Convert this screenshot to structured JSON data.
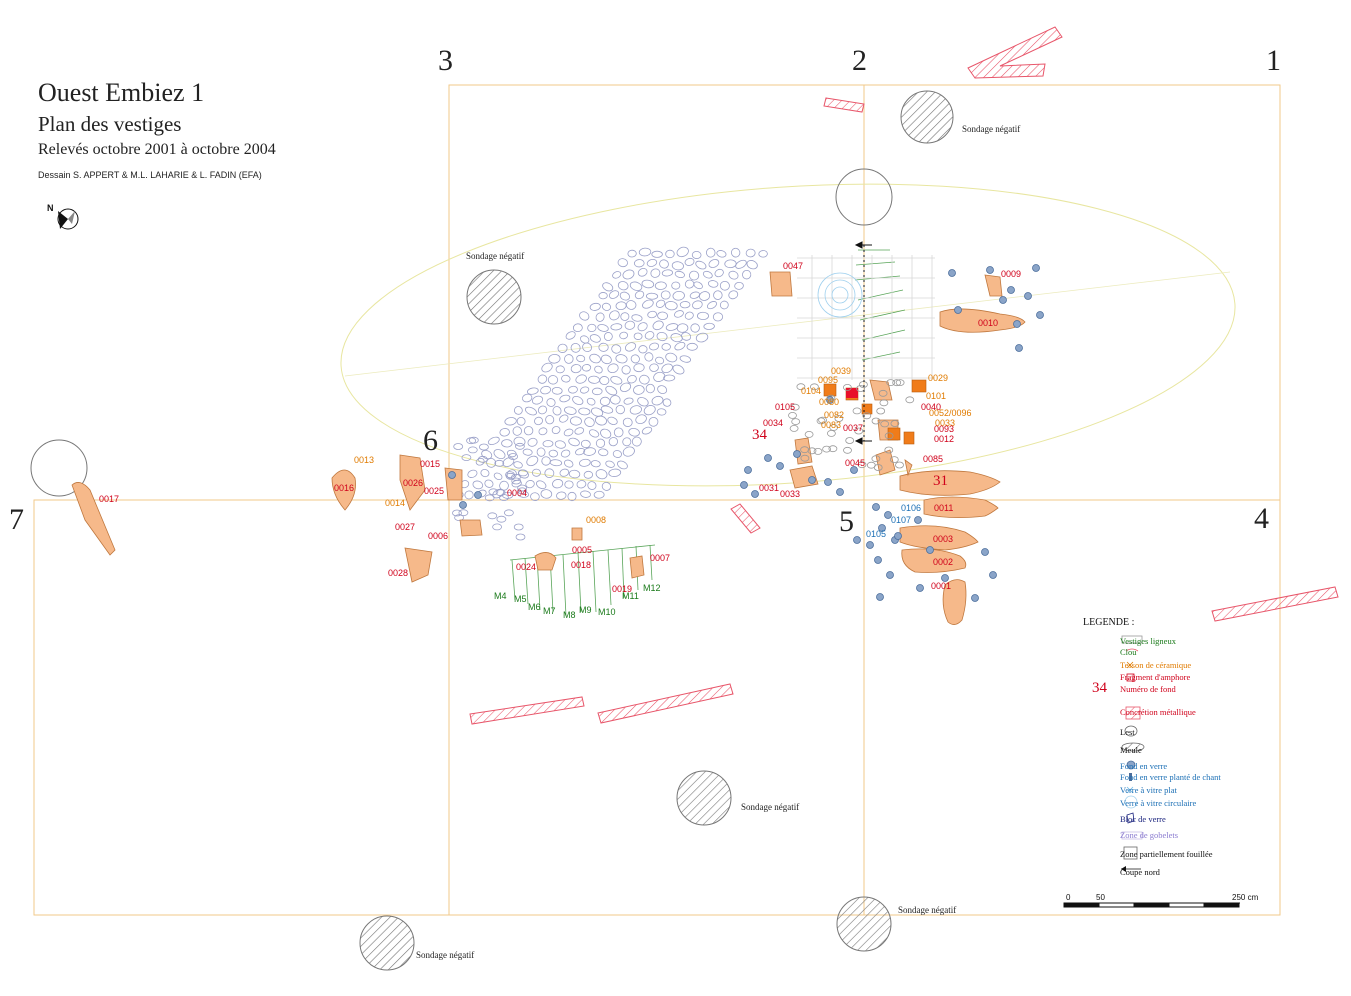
{
  "title": {
    "main": "Ouest Embiez 1",
    "sub": "Plan des vestiges",
    "dates": "Relevés octobre 2001 à octobre 2004",
    "authors": "Dessain S. APPERT & M.L. LAHARIE & L. FADIN (EFA)"
  },
  "north_label": "N",
  "grid_numbers": [
    "1",
    "2",
    "3",
    "4",
    "5",
    "6",
    "7"
  ],
  "sondage_label": "Sondage négatif",
  "finds": {
    "f0047": "0047",
    "f0009": "0009",
    "f0010": "0010",
    "f0039": "0039",
    "f0095": "0095",
    "f0104": "0104",
    "f0080": "0080",
    "f0029": "0029",
    "f0101": "0101",
    "f0040": "0040",
    "f0105": "0105",
    "f0034": "0034",
    "f0082": "0082",
    "f0083": "0083",
    "f0037": "0037",
    "f0052": "0052/0096",
    "f0033b": "0033",
    "f0093": "0093",
    "f0012": "0012",
    "f34": "34",
    "f0045": "0045",
    "f0085": "0085",
    "f31": "31",
    "f0031": "0031",
    "f0033": "0033",
    "f0011": "0011",
    "f0106": "0106",
    "f0107": "0107",
    "f0105b": "0105",
    "f0003": "0003",
    "f0002": "0002",
    "f0001": "0001",
    "f0013": "0013",
    "f0015": "0015",
    "f0016": "0016",
    "f0026": "0026",
    "f0025": "0025",
    "f0014": "0014",
    "f0004": "0004",
    "f0027": "0027",
    "f0006": "0006",
    "f0008": "0008",
    "f0005": "0005",
    "f0007": "0007",
    "f0024": "0024",
    "f0018": "0018",
    "f0019": "0019",
    "f0028": "0028",
    "f0017": "0017",
    "M4": "M4",
    "M5": "M5",
    "M6": "M6",
    "M7": "M7",
    "M8": "M8",
    "M9": "M9",
    "M10": "M10",
    "M11": "M11",
    "M12": "M12"
  },
  "legend": {
    "title": "LEGENDE :",
    "items": [
      {
        "label": "Vestiges ligneux",
        "color": "#1a7a1a"
      },
      {
        "label": "Clou",
        "color": "#1a7a1a"
      },
      {
        "label": "Tesson de céramique",
        "color": "#e07b00"
      },
      {
        "label": "Fragment d'amphore",
        "color": "#d0021b"
      },
      {
        "label": "Numéro de fond",
        "color": "#d0021b",
        "symbol": "34"
      },
      {
        "label": "Concrétion métallique",
        "color": "#d0021b"
      },
      {
        "label": "Lest",
        "color": "#111"
      },
      {
        "label": "Meule",
        "color": "#111"
      },
      {
        "label": "Fond en verre",
        "color": "#1b6fb5"
      },
      {
        "label": "Fond en verre planté de chant",
        "color": "#1b6fb5"
      },
      {
        "label": "Verre à vitre plat",
        "color": "#1b6fb5"
      },
      {
        "label": "Verre à vitre circulaire",
        "color": "#1b6fb5"
      },
      {
        "label": "Bloc de verre",
        "color": "#1a237e"
      },
      {
        "label": "Zone de gobelets",
        "color": "#8a7bd0"
      },
      {
        "label": "Zone partiellement fouillée",
        "color": "#111"
      },
      {
        "label": "Coupe nord",
        "color": "#111"
      }
    ]
  },
  "scale": {
    "start": "0",
    "mid": "50",
    "end": "250 cm"
  }
}
